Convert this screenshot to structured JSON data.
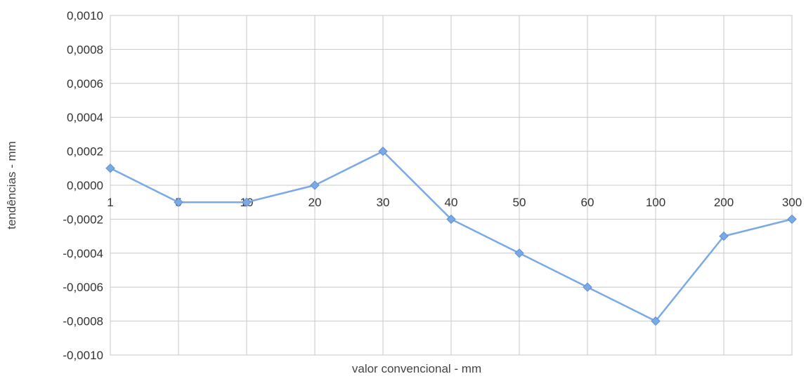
{
  "chart_data": {
    "type": "line",
    "title": "",
    "xlabel": "valor convencional - mm",
    "ylabel": "tendências - mm",
    "categories": [
      "1",
      "5",
      "10",
      "20",
      "30",
      "40",
      "50",
      "60",
      "100",
      "200",
      "300"
    ],
    "y_tick_labels": [
      "0,0010",
      "0,0008",
      "0,0006",
      "0,0004",
      "0,0002",
      "0,0000",
      "-0,0002",
      "-0,0004",
      "-0,0006",
      "-0,0008",
      "-0,0010"
    ],
    "y_ticks": [
      0.001,
      0.0008,
      0.0006,
      0.0004,
      0.0002,
      0.0,
      -0.0002,
      -0.0004,
      -0.0006,
      -0.0008,
      -0.001
    ],
    "ylim": [
      -0.001,
      0.001
    ],
    "grid": true,
    "legend": "none",
    "series": [
      {
        "values": [
          0.0001,
          -0.0001,
          -0.0001,
          0.0,
          0.0002,
          -0.0002,
          -0.0004,
          -0.0006,
          -0.0008,
          -0.0003,
          -0.0002
        ],
        "color": "#7aa9e6",
        "marker": "diamond"
      }
    ]
  }
}
